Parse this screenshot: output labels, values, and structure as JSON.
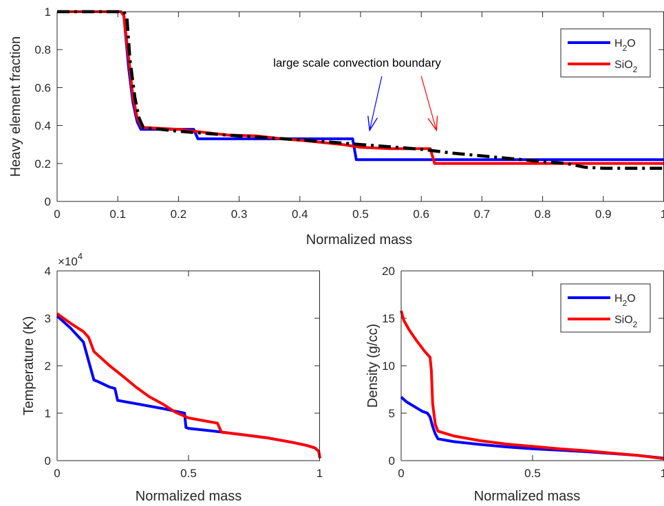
{
  "chart_data": [
    {
      "type": "line",
      "panel": "top",
      "xlabel": "Normalized mass",
      "ylabel": "Heavy element fraction",
      "xlim": [
        0,
        1
      ],
      "ylim": [
        0,
        1
      ],
      "xticks": [
        "0",
        "0.1",
        "0.2",
        "0.3",
        "0.4",
        "0.5",
        "0.6",
        "0.7",
        "0.8",
        "0.9",
        "1"
      ],
      "yticks": [
        "0",
        "0.2",
        "0.4",
        "0.6",
        "0.8",
        "1"
      ],
      "legend": {
        "placement": "top-right",
        "entries": [
          {
            "base": "H",
            "sub": "2",
            "tail": "O"
          },
          {
            "base": "SiO",
            "sub": "2",
            "tail": ""
          }
        ]
      },
      "annotation": "large scale convection boundary",
      "arrows": [
        {
          "color": "#0000ff",
          "from": [
            0.535,
            0.66
          ],
          "to": [
            0.515,
            0.375
          ]
        },
        {
          "color": "#ff0000",
          "from": [
            0.6,
            0.66
          ],
          "to": [
            0.625,
            0.375
          ]
        }
      ],
      "series": [
        {
          "name": "H2O",
          "color": "#0000ff",
          "style": "solid",
          "x": [
            0,
            0.105,
            0.11,
            0.118,
            0.125,
            0.132,
            0.138,
            0.225,
            0.232,
            0.487,
            0.493,
            0.75,
            1.0
          ],
          "y": [
            1.0,
            1.0,
            0.98,
            0.7,
            0.52,
            0.42,
            0.38,
            0.38,
            0.33,
            0.33,
            0.22,
            0.22,
            0.22
          ]
        },
        {
          "name": "SiO2",
          "color": "#ff0000",
          "style": "solid",
          "x": [
            0,
            0.105,
            0.11,
            0.118,
            0.125,
            0.132,
            0.14,
            0.2,
            0.24,
            0.28,
            0.33,
            0.37,
            0.41,
            0.47,
            0.5,
            0.55,
            0.615,
            0.622,
            0.8,
            1.0
          ],
          "y": [
            1.0,
            1.0,
            0.98,
            0.75,
            0.55,
            0.44,
            0.39,
            0.38,
            0.365,
            0.35,
            0.345,
            0.33,
            0.32,
            0.3,
            0.285,
            0.278,
            0.278,
            0.2,
            0.2,
            0.2
          ]
        },
        {
          "name": "",
          "color": "#000000",
          "style": "dashdot",
          "x": [
            0,
            0.11,
            0.115,
            0.12,
            0.128,
            0.135,
            0.142,
            0.2,
            0.3,
            0.4,
            0.5,
            0.6,
            0.65,
            0.75,
            0.8,
            0.84,
            0.87,
            0.9,
            1.0
          ],
          "y": [
            1.0,
            1.0,
            0.97,
            0.75,
            0.55,
            0.44,
            0.39,
            0.37,
            0.345,
            0.325,
            0.3,
            0.275,
            0.255,
            0.225,
            0.21,
            0.2,
            0.18,
            0.175,
            0.175
          ]
        }
      ]
    },
    {
      "type": "line",
      "panel": "bottom-left",
      "xlabel": "Normalized mass",
      "ylabel": "Temperature (K)",
      "exponent_label": {
        "base": "×10",
        "power": "4"
      },
      "xlim": [
        0,
        1
      ],
      "ylim": [
        0,
        4
      ],
      "xticks": [
        "0",
        "0.5",
        "1"
      ],
      "yticks": [
        "0",
        "1",
        "2",
        "3",
        "4"
      ],
      "series": [
        {
          "name": "H2O",
          "color": "#0000ff",
          "style": "solid",
          "x": [
            0,
            0.05,
            0.1,
            0.12,
            0.14,
            0.15,
            0.2,
            0.22,
            0.23,
            0.3,
            0.4,
            0.485,
            0.49,
            0.5,
            0.6,
            0.7,
            0.8,
            0.9,
            0.95,
            0.98,
            0.995,
            1.0
          ],
          "y": [
            3.05,
            2.8,
            2.5,
            2.1,
            1.7,
            1.68,
            1.55,
            1.52,
            1.27,
            1.2,
            1.1,
            1.0,
            0.7,
            0.68,
            0.62,
            0.55,
            0.48,
            0.38,
            0.32,
            0.27,
            0.2,
            0.05
          ]
        },
        {
          "name": "SiO2",
          "color": "#ff0000",
          "style": "solid",
          "x": [
            0,
            0.05,
            0.1,
            0.12,
            0.14,
            0.16,
            0.2,
            0.25,
            0.3,
            0.35,
            0.4,
            0.45,
            0.5,
            0.55,
            0.61,
            0.625,
            0.7,
            0.8,
            0.9,
            0.95,
            0.98,
            0.995,
            1.0
          ],
          "y": [
            3.1,
            2.9,
            2.72,
            2.6,
            2.3,
            2.2,
            2.0,
            1.78,
            1.55,
            1.35,
            1.2,
            1.02,
            0.9,
            0.85,
            0.79,
            0.6,
            0.55,
            0.48,
            0.38,
            0.32,
            0.27,
            0.2,
            0.05
          ]
        }
      ]
    },
    {
      "type": "line",
      "panel": "bottom-right",
      "xlabel": "Normalized mass",
      "ylabel": "Density (g/cc)",
      "xlim": [
        0,
        1
      ],
      "ylim": [
        0,
        20
      ],
      "xticks": [
        "0",
        "0.5",
        "1"
      ],
      "yticks": [
        "0",
        "5",
        "10",
        "15",
        "20"
      ],
      "legend": {
        "placement": "top-right",
        "entries": [
          {
            "base": "H",
            "sub": "2",
            "tail": "O"
          },
          {
            "base": "SiO",
            "sub": "2",
            "tail": ""
          }
        ]
      },
      "series": [
        {
          "name": "H2O",
          "color": "#0000ff",
          "style": "solid",
          "x": [
            0,
            0.02,
            0.05,
            0.08,
            0.1,
            0.11,
            0.12,
            0.13,
            0.14,
            0.2,
            0.3,
            0.4,
            0.5,
            0.6,
            0.7,
            0.8,
            0.9,
            1.0
          ],
          "y": [
            6.7,
            6.2,
            5.7,
            5.2,
            5.0,
            4.6,
            3.6,
            2.8,
            2.3,
            2.0,
            1.7,
            1.45,
            1.25,
            1.1,
            0.95,
            0.75,
            0.55,
            0.25
          ]
        },
        {
          "name": "SiO2",
          "color": "#ff0000",
          "style": "solid",
          "x": [
            0,
            0.01,
            0.03,
            0.06,
            0.09,
            0.11,
            0.115,
            0.12,
            0.13,
            0.14,
            0.2,
            0.3,
            0.4,
            0.5,
            0.6,
            0.7,
            0.8,
            0.9,
            1.0
          ],
          "y": [
            15.8,
            14.8,
            13.8,
            12.6,
            11.5,
            10.9,
            9.5,
            6.0,
            3.8,
            3.1,
            2.6,
            2.1,
            1.75,
            1.5,
            1.25,
            1.05,
            0.8,
            0.55,
            0.2
          ]
        }
      ]
    }
  ]
}
